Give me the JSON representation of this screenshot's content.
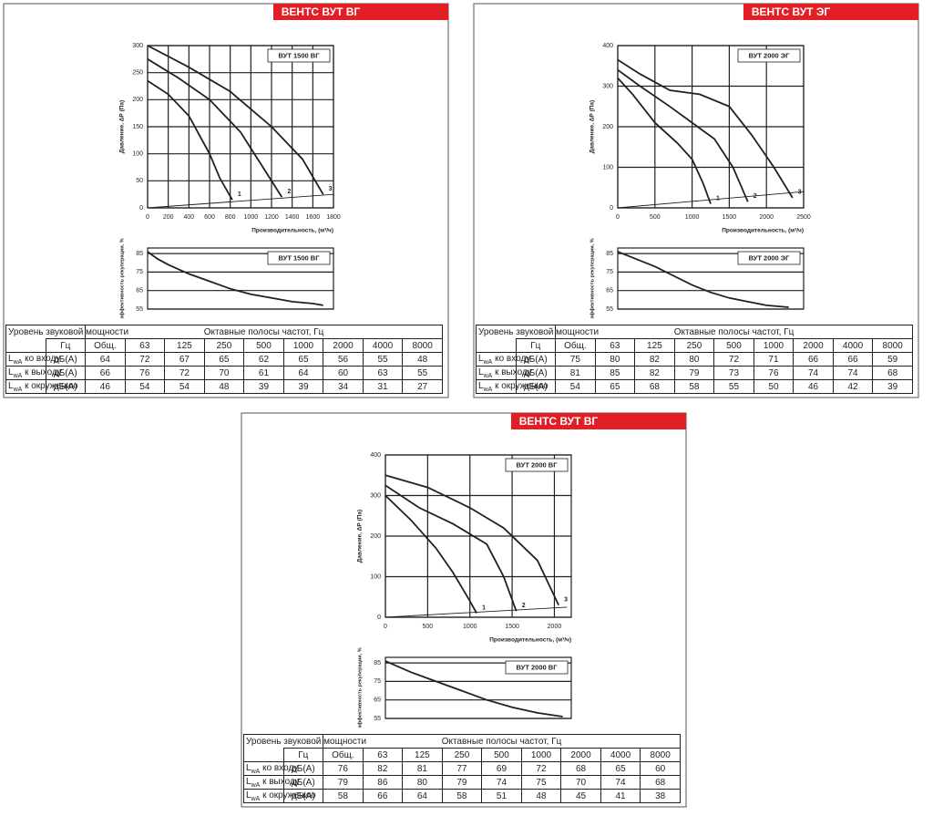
{
  "panels": [
    {
      "header": "ВЕНТС ВУТ ВГ",
      "table": {
        "header": [
          "Уровень звуковой мощности",
          "Октавные полосы частот, Гц"
        ],
        "columns": [
          "Гц",
          "Общ.",
          63,
          125,
          250,
          500,
          1000,
          2000,
          4000,
          8000
        ],
        "rows": [
          {
            "symbol": "L",
            "subscript": "wA",
            "label": "ко входу",
            "unit": "дБ(А)",
            "values": [
              64,
              72,
              67,
              65,
              62,
              65,
              56,
              55,
              48
            ]
          },
          {
            "symbol": "L",
            "subscript": "wA",
            "label": "к выходу",
            "unit": "дБ(А)",
            "values": [
              66,
              76,
              72,
              70,
              61,
              64,
              60,
              63,
              55
            ]
          },
          {
            "symbol": "L",
            "subscript": "wA",
            "label": "к окружению",
            "unit": "дБ(А)",
            "values": [
              46,
              54,
              54,
              48,
              39,
              39,
              34,
              31,
              27
            ]
          }
        ]
      }
    },
    {
      "header": "ВЕНТС ВУТ ЭГ",
      "table": {
        "header": [
          "Уровень звуковой мощности",
          "Октавные полосы частот, Гц"
        ],
        "columns": [
          "Гц",
          "Общ.",
          63,
          125,
          250,
          500,
          1000,
          2000,
          4000,
          8000
        ],
        "rows": [
          {
            "symbol": "L",
            "subscript": "wA",
            "label": "ко входу",
            "unit": "дБ(А)",
            "values": [
              75,
              80,
              82,
              80,
              72,
              71,
              66,
              66,
              59
            ]
          },
          {
            "symbol": "L",
            "subscript": "wA",
            "label": "к выходу",
            "unit": "дБ(А)",
            "values": [
              81,
              85,
              82,
              79,
              73,
              76,
              74,
              74,
              68
            ]
          },
          {
            "symbol": "L",
            "subscript": "wA",
            "label": "к окружению",
            "unit": "дБ(А)",
            "values": [
              54,
              65,
              68,
              58,
              55,
              50,
              46,
              42,
              39
            ]
          }
        ]
      }
    },
    {
      "header": "ВЕНТС ВУТ ВГ",
      "table": {
        "header": [
          "Уровень звуковой мощности",
          "Октавные полосы частот, Гц"
        ],
        "columns": [
          "Гц",
          "Общ.",
          63,
          125,
          250,
          500,
          1000,
          2000,
          4000,
          8000
        ],
        "rows": [
          {
            "symbol": "L",
            "subscript": "wA",
            "label": "ко входу",
            "unit": "дБ(А)",
            "values": [
              76,
              82,
              81,
              77,
              69,
              72,
              68,
              65,
              60
            ]
          },
          {
            "symbol": "L",
            "subscript": "wA",
            "label": "к выходу",
            "unit": "дБ(А)",
            "values": [
              79,
              86,
              80,
              79,
              74,
              75,
              70,
              74,
              68
            ]
          },
          {
            "symbol": "L",
            "subscript": "wA",
            "label": "к окружению",
            "unit": "дБ(А)",
            "values": [
              58,
              66,
              64,
              58,
              51,
              48,
              45,
              41,
              38
            ]
          }
        ]
      }
    }
  ],
  "chart_data": [
    {
      "type": "line",
      "title": "ВУТ 1500 ВГ",
      "y_label": "Давление, ΔР (Па)",
      "x_label": "Производительность, (м³/ч)",
      "xlim": [
        0,
        1800
      ],
      "xticks": [
        0,
        200,
        400,
        600,
        800,
        1000,
        1200,
        1400,
        1600,
        1800
      ],
      "ylim": [
        0,
        300
      ],
      "yticks": [
        0,
        50,
        100,
        150,
        200,
        250,
        300
      ],
      "grid": true,
      "series": [
        {
          "name": "1",
          "color": "#231f20",
          "x": [
            0,
            200,
            400,
            600,
            700,
            820
          ],
          "values": [
            235,
            210,
            170,
            100,
            55,
            15
          ]
        },
        {
          "name": "2",
          "color": "#231f20",
          "x": [
            0,
            300,
            600,
            900,
            1100,
            1300
          ],
          "values": [
            275,
            240,
            200,
            140,
            80,
            20
          ]
        },
        {
          "name": "3",
          "color": "#231f20",
          "x": [
            0,
            400,
            800,
            1200,
            1500,
            1700
          ],
          "values": [
            300,
            260,
            215,
            150,
            90,
            25
          ]
        },
        {
          "color": "#231f20",
          "x": [
            0,
            1800
          ],
          "values": [
            0,
            25
          ]
        }
      ]
    },
    {
      "type": "line",
      "title": "ВУТ 1500 ВГ",
      "y_label": "эффективность рекуперации, %",
      "xlim": [
        0,
        1800
      ],
      "ylim": [
        55,
        88
      ],
      "yticks": [
        55,
        65,
        75,
        85
      ],
      "grid": true,
      "series": [
        {
          "color": "#231f20",
          "x": [
            0,
            100,
            200,
            400,
            600,
            800,
            1000,
            1200,
            1400,
            1600,
            1700
          ],
          "values": [
            86,
            82,
            79,
            74,
            70,
            66,
            63,
            61,
            59,
            58,
            57
          ]
        }
      ]
    },
    {
      "type": "line",
      "title": "ВУТ 2000 ЭГ",
      "y_label": "Давление, ΔР (Па)",
      "x_label": "Производительность, (м³/ч)",
      "xlim": [
        0,
        2500
      ],
      "xticks": [
        0,
        500,
        1000,
        1500,
        2000,
        2500
      ],
      "ylim": [
        0,
        400
      ],
      "yticks": [
        0,
        100,
        200,
        300,
        400
      ],
      "grid": true,
      "series": [
        {
          "name": "1",
          "color": "#231f20",
          "x": [
            0,
            200,
            500,
            800,
            1000,
            1150,
            1250
          ],
          "values": [
            320,
            280,
            210,
            160,
            120,
            60,
            10
          ]
        },
        {
          "name": "2",
          "color": "#231f20",
          "x": [
            0,
            300,
            700,
            1000,
            1300,
            1550,
            1750
          ],
          "values": [
            340,
            300,
            250,
            210,
            170,
            100,
            15
          ]
        },
        {
          "name": "3",
          "color": "#231f20",
          "x": [
            0,
            300,
            700,
            1100,
            1500,
            1800,
            2100,
            2350
          ],
          "values": [
            365,
            330,
            290,
            280,
            250,
            180,
            100,
            25
          ]
        },
        {
          "color": "#231f20",
          "x": [
            0,
            2500
          ],
          "values": [
            0,
            40
          ]
        }
      ]
    },
    {
      "type": "line",
      "title": "ВУТ 2000 ЭГ",
      "y_label": "эффективность рекуперации, %",
      "xlim": [
        0,
        2500
      ],
      "ylim": [
        55,
        88
      ],
      "yticks": [
        55,
        65,
        75,
        85
      ],
      "grid": true,
      "series": [
        {
          "color": "#231f20",
          "x": [
            0,
            250,
            500,
            750,
            1000,
            1250,
            1500,
            1750,
            2000,
            2300
          ],
          "values": [
            86,
            82,
            78,
            73,
            68,
            64,
            61,
            59,
            57,
            56
          ]
        }
      ]
    },
    {
      "type": "line",
      "title": "ВУТ 2000 ВГ",
      "y_label": "Давление, ΔР (Па)",
      "x_label": "Производительность, (м³/ч)",
      "xlim": [
        0,
        2200
      ],
      "xticks": [
        0,
        500,
        1000,
        1500,
        2000
      ],
      "ylim": [
        0,
        400
      ],
      "yticks": [
        0,
        100,
        200,
        300,
        400
      ],
      "grid": true,
      "series": [
        {
          "name": "1",
          "color": "#231f20",
          "x": [
            0,
            300,
            600,
            800,
            1000,
            1080
          ],
          "values": [
            300,
            240,
            170,
            110,
            40,
            10
          ]
        },
        {
          "name": "2",
          "color": "#231f20",
          "x": [
            0,
            400,
            800,
            1200,
            1400,
            1550
          ],
          "values": [
            325,
            270,
            230,
            180,
            100,
            15
          ]
        },
        {
          "name": "3",
          "color": "#231f20",
          "x": [
            0,
            500,
            1000,
            1400,
            1800,
            2050
          ],
          "values": [
            350,
            320,
            270,
            220,
            140,
            30
          ]
        },
        {
          "color": "#231f20",
          "x": [
            0,
            2150
          ],
          "values": [
            0,
            25
          ]
        }
      ]
    },
    {
      "type": "line",
      "title": "ВУТ 2000 ВГ",
      "y_label": "эффективность рекуперации, %",
      "xlim": [
        0,
        2200
      ],
      "ylim": [
        55,
        88
      ],
      "yticks": [
        55,
        65,
        75,
        85
      ],
      "grid": true,
      "series": [
        {
          "color": "#231f20",
          "x": [
            0,
            300,
            600,
            900,
            1200,
            1500,
            1800,
            2100
          ],
          "values": [
            86,
            80,
            75,
            70,
            65,
            61,
            58,
            56
          ]
        }
      ]
    }
  ]
}
